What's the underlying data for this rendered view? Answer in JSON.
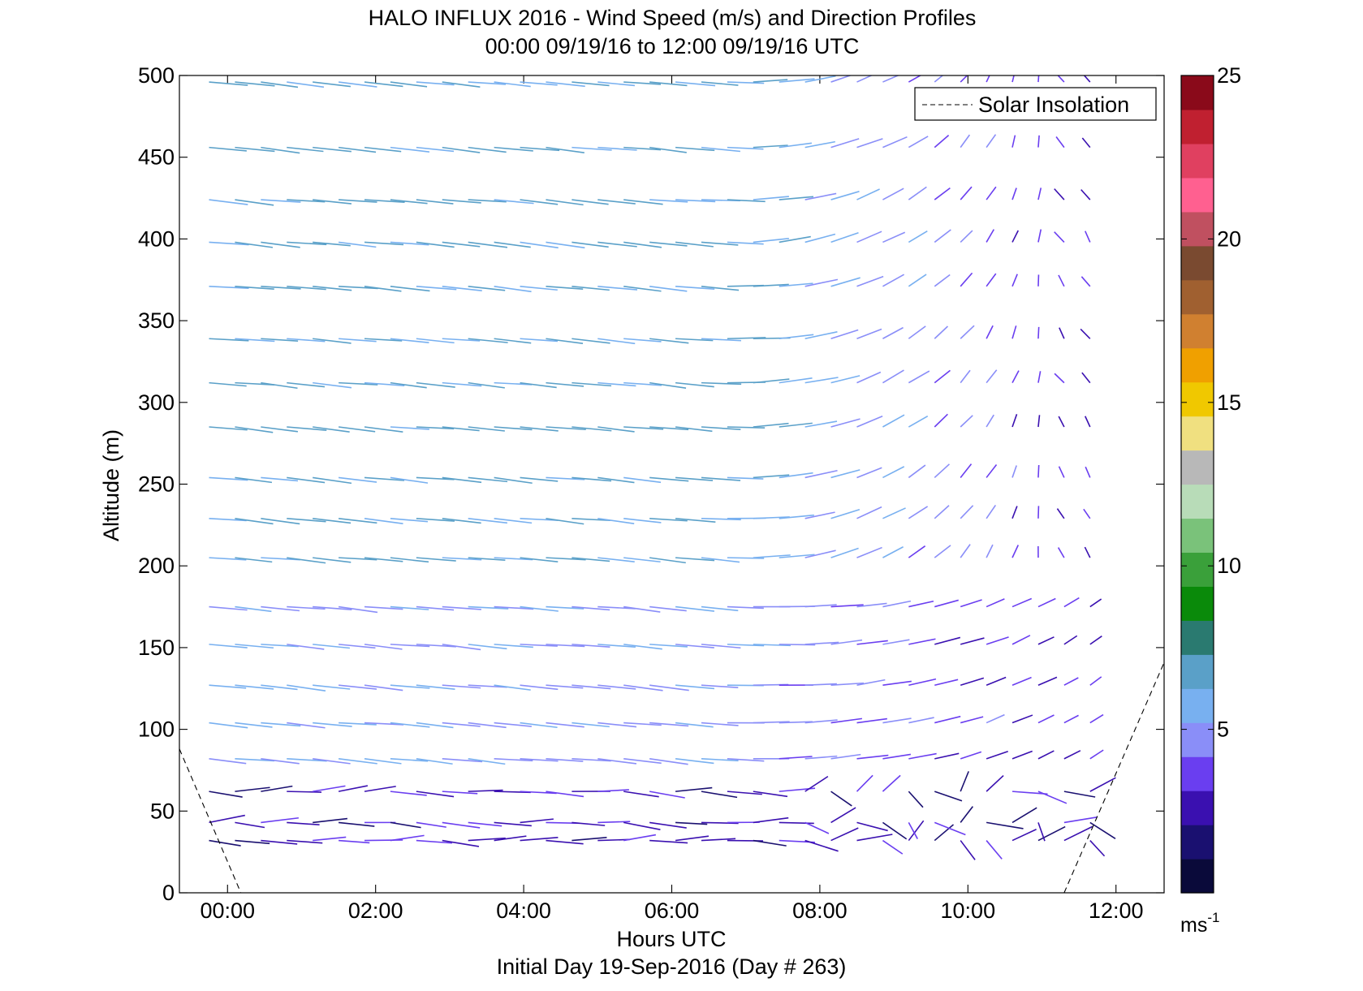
{
  "chart_data": {
    "type": "wind-barb-profile",
    "title_line1": "HALO INFLUX 2016 - Wind Speed (m/s) and Direction Profiles",
    "title_line2": "00:00 09/19/16 to 12:00 09/19/16  UTC",
    "xlabel": "Hours UTC",
    "xlabel2": "Initial Day 19-Sep-2016 (Day # 263)",
    "ylabel": "Altitude (m)",
    "xlim": [
      -0.65,
      12.65
    ],
    "ylim": [
      0,
      500
    ],
    "x_ticks": [
      0,
      2,
      4,
      6,
      8,
      10,
      12
    ],
    "x_tick_labels": [
      "00:00",
      "02:00",
      "04:00",
      "06:00",
      "08:00",
      "10:00",
      "12:00"
    ],
    "y_ticks": [
      0,
      50,
      100,
      150,
      200,
      250,
      300,
      350,
      400,
      450,
      500
    ],
    "y_tick_labels": [
      "0",
      "50",
      "100",
      "150",
      "200",
      "250",
      "300",
      "350",
      "400",
      "450",
      "500"
    ],
    "legend": {
      "label": "Solar Insolation",
      "position": "top-right",
      "style": "dashed"
    },
    "colorbar": {
      "min": 0,
      "max": 25,
      "ticks": [
        5,
        10,
        15,
        20,
        25
      ],
      "tick_labels": [
        "5",
        "10",
        "15",
        "20",
        "25"
      ],
      "unit_label": "ms",
      "unit_exponent": "-1",
      "colors": [
        "#0a0a3a",
        "#1a1070",
        "#3a10b0",
        "#6a3ef0",
        "#8a8ef8",
        "#78b0f0",
        "#5aa0c8",
        "#2a7a70",
        "#0a8a0a",
        "#3aa03a",
        "#7ac27a",
        "#b8dcb8",
        "#b8b8b8",
        "#f0e080",
        "#f0c800",
        "#f0a000",
        "#d08030",
        "#a06030",
        "#7a4a30",
        "#c05060",
        "#ff6090",
        "#e04060",
        "#c02030",
        "#8a0a1a"
      ]
    },
    "solar_insolation": [
      {
        "x": [
          -0.65,
          0.18
        ],
        "y": [
          88,
          0
        ]
      },
      {
        "x": [
          11.3,
          12.68
        ],
        "y": [
          0,
          144
        ]
      }
    ],
    "wind_times_hours": [
      -0.25,
      0.1,
      0.45,
      0.8,
      1.15,
      1.5,
      1.85,
      2.2,
      2.55,
      2.9,
      3.25,
      3.6,
      3.95,
      4.3,
      4.65,
      5.0,
      5.35,
      5.7,
      6.05,
      6.4,
      6.75,
      7.1,
      7.45,
      7.8,
      8.15,
      8.5,
      8.85,
      9.2,
      9.55,
      9.9,
      10.25,
      10.6,
      10.95,
      11.3,
      11.65
    ],
    "wind_altitudes_m": [
      32,
      43,
      62,
      82,
      104,
      127,
      152,
      175,
      205,
      229,
      254,
      285,
      312,
      339,
      371,
      398,
      424,
      456,
      496
    ],
    "wind_field_note": "",
    "wind_speed_estimate_ms": {
      "low_levels": 2.5,
      "upper_early": 6.5,
      "upper_late": 3
    }
  }
}
